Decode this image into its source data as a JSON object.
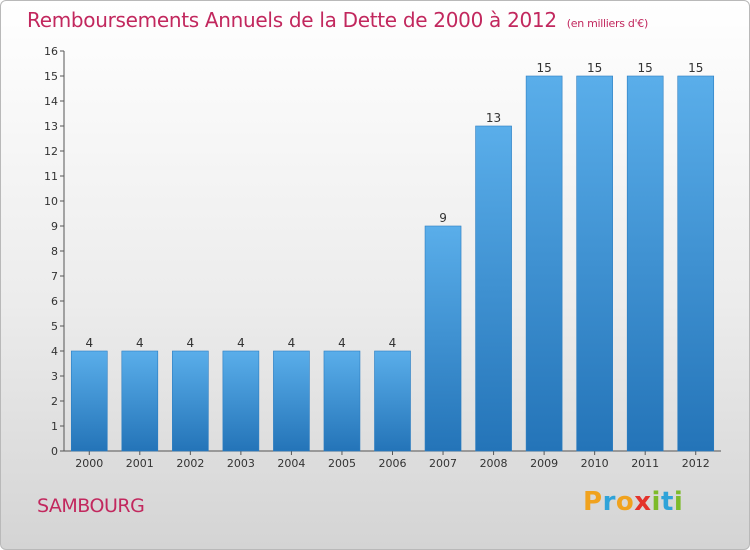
{
  "header": {
    "title": "Remboursements Annuels de la Dette de 2000 à 2012",
    "unit": "(en milliers d'€)"
  },
  "commune_name": "SAMBOURG",
  "brand": {
    "logo_text": "Proxiti",
    "letter_colors": [
      "#f0a21e",
      "#2fa3d9",
      "#f0a21e",
      "#e4322b",
      "#7dbb2a",
      "#2fa3d9",
      "#7dbb2a"
    ]
  },
  "chart_data": {
    "type": "bar",
    "title": "Remboursements Annuels de la Dette de 2000 à 2012",
    "xlabel": "",
    "ylabel": "",
    "categories": [
      "2000",
      "2001",
      "2002",
      "2003",
      "2004",
      "2005",
      "2006",
      "2007",
      "2008",
      "2009",
      "2010",
      "2011",
      "2012"
    ],
    "values": [
      4,
      4,
      4,
      4,
      4,
      4,
      4,
      9,
      13,
      15,
      15,
      15,
      15
    ],
    "data_labels": [
      "4",
      "4",
      "4",
      "4",
      "4",
      "4",
      "4",
      "9",
      "13",
      "15",
      "15",
      "15",
      "15"
    ],
    "ylim": [
      0,
      16
    ],
    "yticks": [
      0,
      1,
      2,
      3,
      4,
      5,
      6,
      7,
      8,
      9,
      10,
      11,
      12,
      13,
      14,
      15,
      16
    ],
    "grid": false,
    "legend": "none",
    "bar_color": "#3d98dc"
  }
}
